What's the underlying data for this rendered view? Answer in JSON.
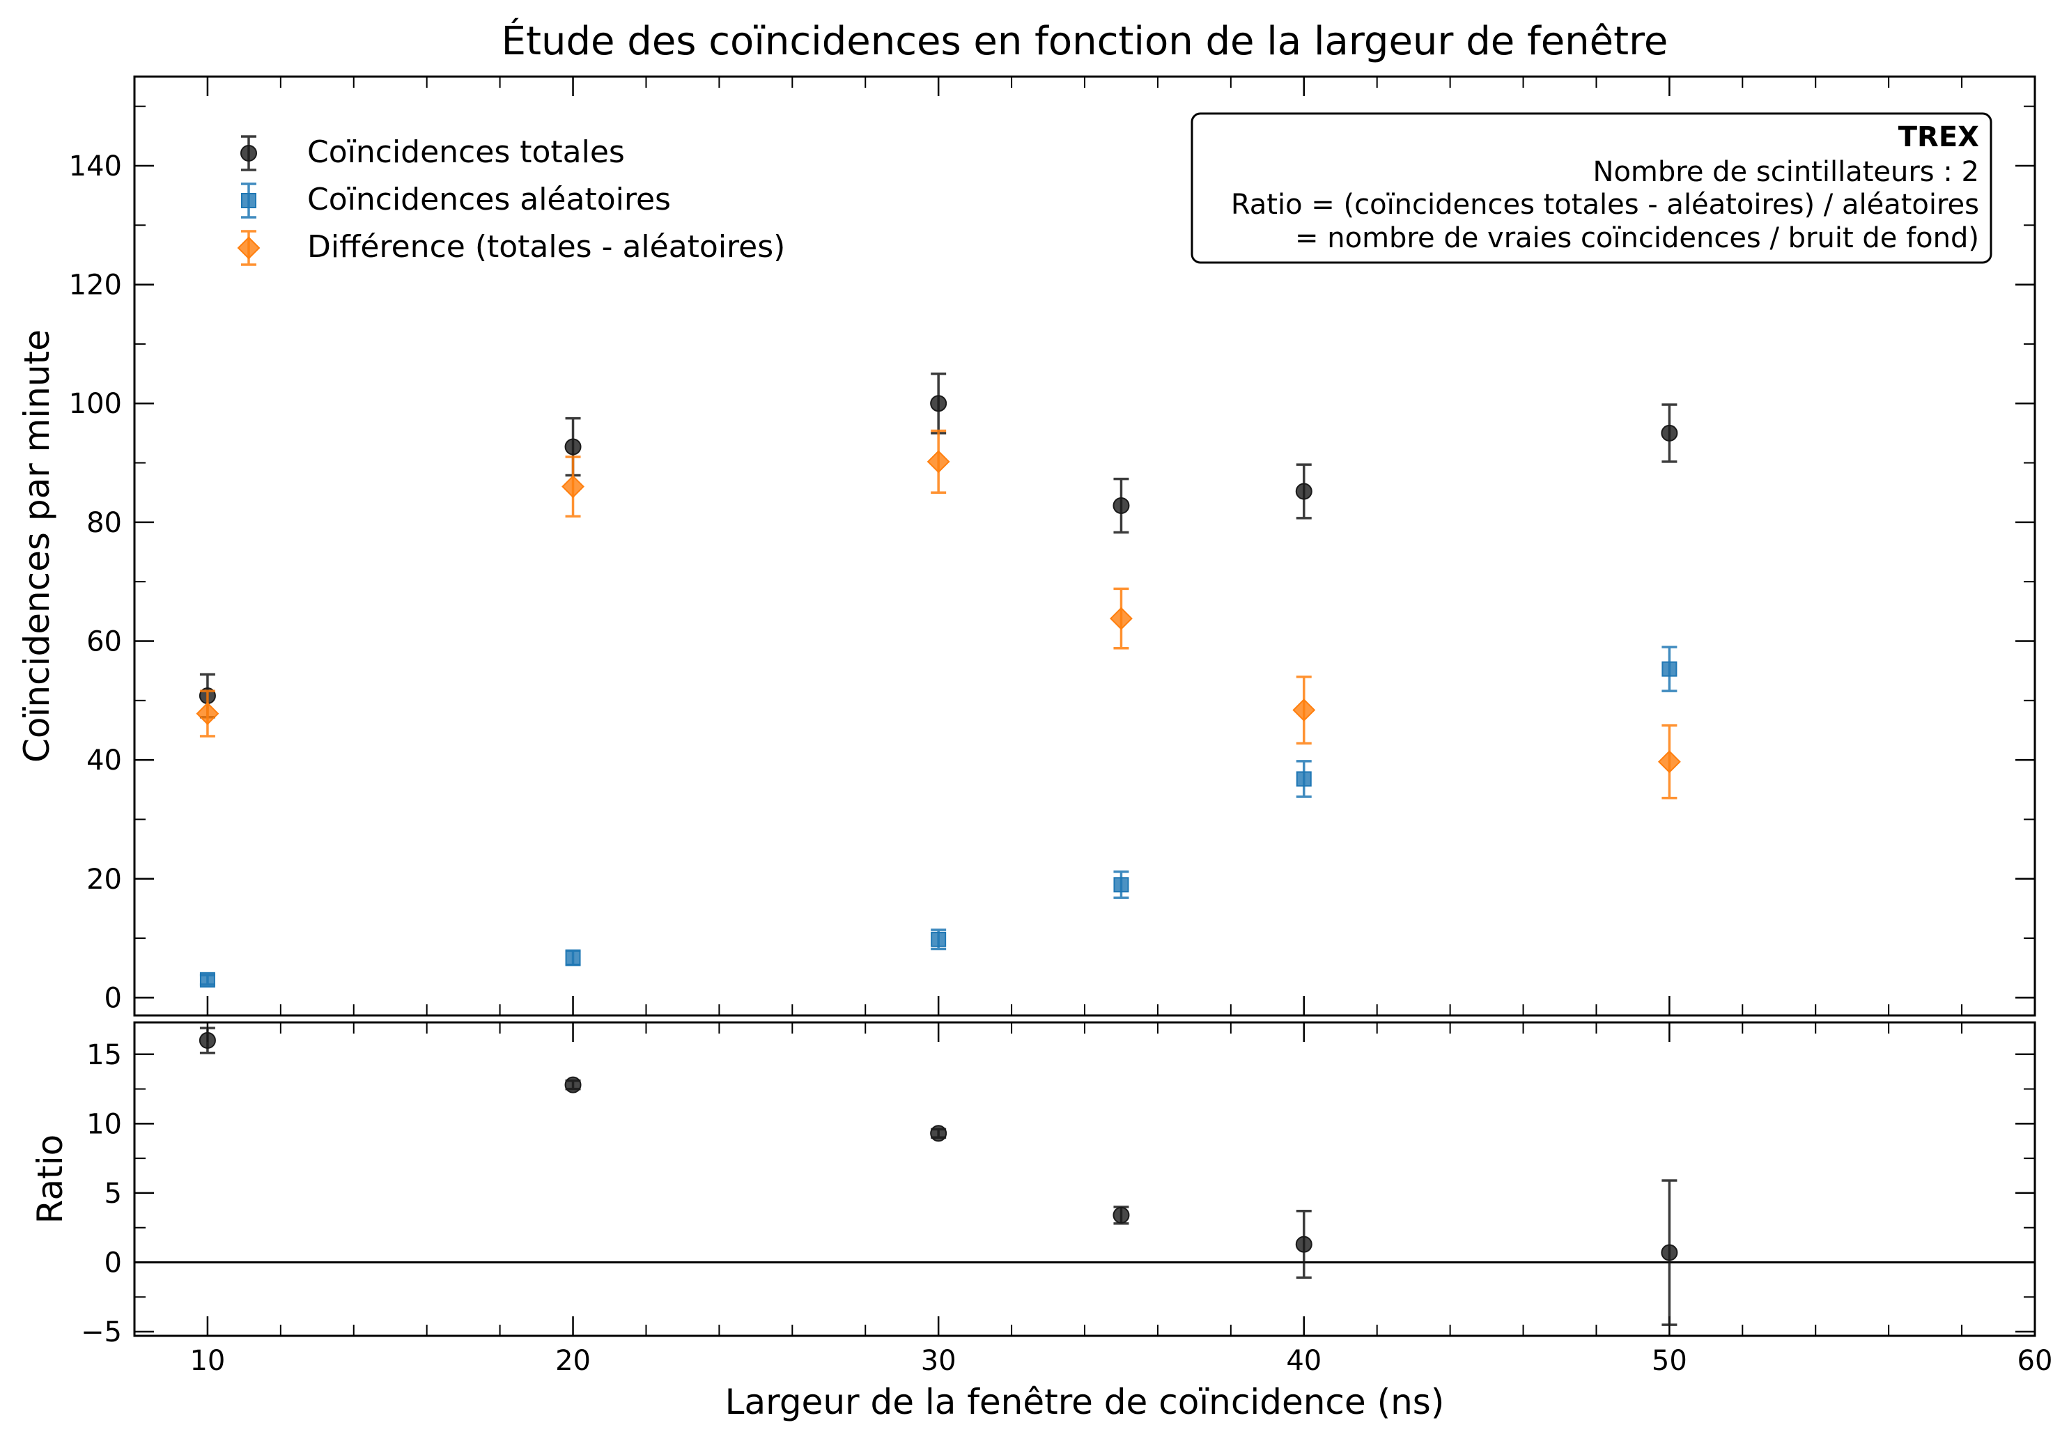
{
  "title": "Étude des coïncidences en fonction de la largeur de fenêtre",
  "colors": {
    "totales": "#1a1a1a",
    "aleatoires": "#1f77b4",
    "difference": "#ff7f0e",
    "frame": "#000000"
  },
  "legend": {
    "totales": "Coïncidences totales",
    "aleatoires": "Coïncidences aléatoires",
    "difference": "Différence (totales - aléatoires)"
  },
  "infobox": {
    "heading": "TREX",
    "line1": "Nombre de scintillateurs : 2",
    "line2": "Ratio = (coïncidences totales - aléatoires) / aléatoires",
    "line3": "= nombre de vraies coïncidences / bruit de fond)"
  },
  "chart_data": [
    {
      "type": "scatter",
      "title": "Étude des coïncidences en fonction de la largeur de fenêtre",
      "ylabel": "Coïncidences par minute",
      "xlim": [
        8,
        60
      ],
      "ylim": [
        -3,
        155
      ],
      "yticks": [
        0,
        20,
        40,
        60,
        80,
        100,
        120,
        140
      ],
      "legend_position": "top-left",
      "series": [
        {
          "key": "totales",
          "name": "Coïncidences totales",
          "marker": "circle",
          "x": [
            10,
            20,
            30,
            35,
            40,
            50
          ],
          "y": [
            50.8,
            92.7,
            100.0,
            82.8,
            85.2,
            95.0
          ],
          "yerr": [
            3.6,
            4.8,
            5.0,
            4.5,
            4.5,
            4.8
          ]
        },
        {
          "key": "aleatoires",
          "name": "Coïncidences aléatoires",
          "marker": "square",
          "x": [
            10,
            20,
            30,
            35,
            40,
            50
          ],
          "y": [
            3.0,
            6.7,
            9.8,
            19.0,
            36.8,
            55.3
          ],
          "yerr": [
            0.8,
            1.2,
            1.6,
            2.2,
            3.0,
            3.7
          ]
        },
        {
          "key": "difference",
          "name": "Différence (totales - aléatoires)",
          "marker": "diamond",
          "x": [
            10,
            20,
            30,
            35,
            40,
            50
          ],
          "y": [
            47.8,
            86.0,
            90.2,
            63.8,
            48.4,
            39.7
          ],
          "yerr": [
            3.8,
            5.0,
            5.2,
            5.0,
            5.6,
            6.1
          ]
        }
      ]
    },
    {
      "type": "scatter",
      "xlabel": "Largeur de la fenêtre de coïncidence (ns)",
      "ylabel": "Ratio",
      "xlim": [
        8,
        60
      ],
      "ylim": [
        -5.3,
        17.3
      ],
      "xticks": [
        10,
        20,
        30,
        40,
        50,
        60
      ],
      "yticks": [
        -5,
        0,
        5,
        10,
        15
      ],
      "reference_line": 0,
      "series": [
        {
          "key": "ratio",
          "marker": "circle",
          "x": [
            10,
            20,
            30,
            35,
            40,
            50
          ],
          "y": [
            16.0,
            12.8,
            9.3,
            3.4,
            1.3,
            0.7
          ],
          "yerr": [
            0.9,
            0.3,
            0.3,
            0.6,
            2.4,
            5.2
          ]
        }
      ]
    }
  ]
}
